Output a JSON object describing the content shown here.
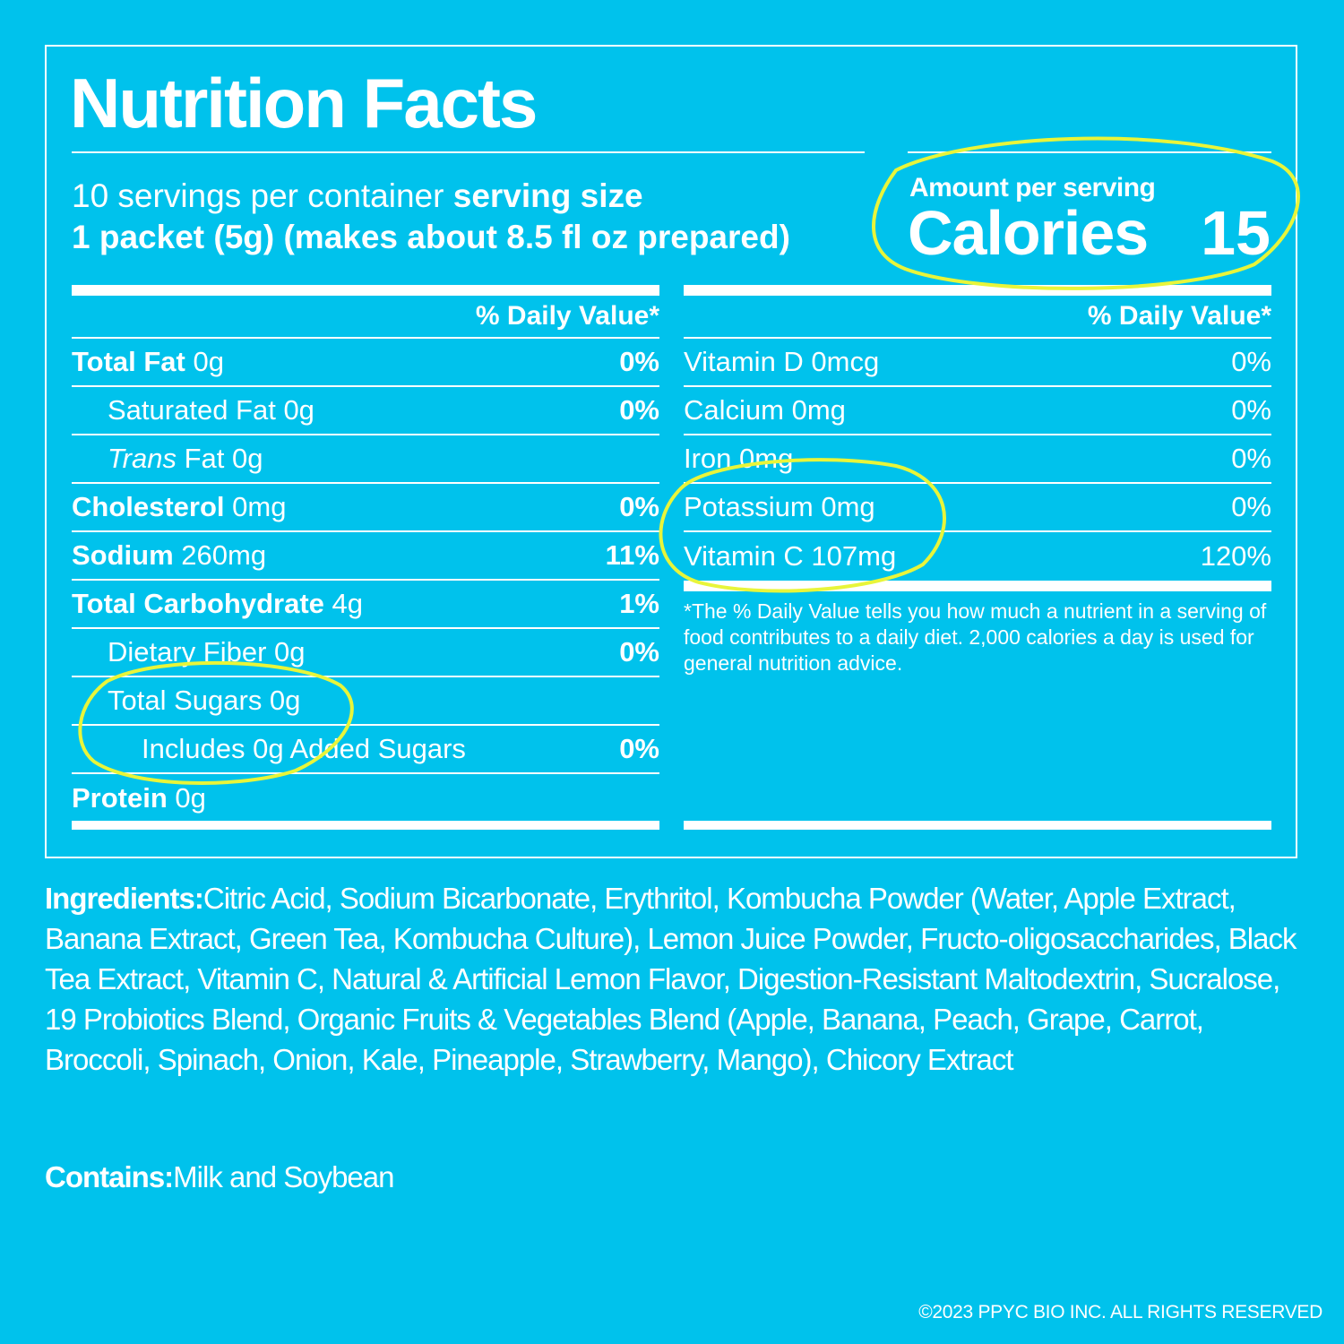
{
  "title": "Nutrition Facts",
  "serving": {
    "servings_text": "10 servings per container",
    "serving_size_label": "serving size",
    "serving_size_value": "1 packet (5g) (makes about 8.5 fl oz prepared)"
  },
  "calories": {
    "amount_label": "Amount per serving",
    "label": "Calories",
    "value": "15"
  },
  "dv_header": "% Daily Value*",
  "left_rows": [
    {
      "name": "Total Fat",
      "amount": "0g",
      "pct": "0%"
    },
    {
      "name": "Saturated Fat 0g",
      "pct": "0%"
    },
    {
      "name_italic": "Trans",
      "name": "Fat 0g",
      "pct": ""
    },
    {
      "name": "Cholesterol",
      "amount": "0mg",
      "pct": "0%"
    },
    {
      "name": "Sodium",
      "amount": "260mg",
      "pct": "11%"
    },
    {
      "name": "Total Carbohydrate",
      "amount": "4g",
      "pct": "1%"
    },
    {
      "name": "Dietary Fiber 0g",
      "pct": "0%"
    },
    {
      "name": "Total Sugars 0g",
      "pct": ""
    },
    {
      "name": "Includes 0g Added Sugars",
      "pct": "0%"
    },
    {
      "name": "Protein",
      "amount": "0g",
      "pct": ""
    }
  ],
  "right_rows": [
    {
      "name": "Vitamin D 0mcg",
      "pct": "0%"
    },
    {
      "name": "Calcium 0mg",
      "pct": "0%"
    },
    {
      "name": "Iron 0mg",
      "pct": "0%"
    },
    {
      "name": "Potassium 0mg",
      "pct": "0%"
    },
    {
      "name": "Vitamin C 107mg",
      "pct": "120%"
    }
  ],
  "footnote": "*The % Daily Value tells you how much a nutrient in a serving of food contributes to a daily diet. 2,000 calories a day is used for general nutrition advice.",
  "ingredients": {
    "label": "Ingredients:",
    "text": "Citric Acid, Sodium Bicarbonate, Erythritol, Kombucha Powder (Water, Apple Extract, Banana Extract, Green Tea, Kombucha Culture), Lemon Juice Powder, Fructo-oligosaccharides, Black Tea Extract, Vitamin C, Natural & Artificial Lemon Flavor, Digestion-Resistant Maltodextrin, Sucralose, 19 Probiotics Blend, Organic Fruits & Vegetables Blend (Apple, Banana, Peach, Grape, Carrot, Broccoli, Spinach, Onion, Kale, Pineapple, Strawberry, Mango), Chicory Extract"
  },
  "contains": {
    "label": "Contains:",
    "text": "Milk and Soybean"
  },
  "copyright": "©2023 PPYC BIO INC. ALL RIGHTS RESERVED",
  "colors": {
    "background": "#00c2ec",
    "text": "#ffffff",
    "highlight": "#e8f53a"
  }
}
